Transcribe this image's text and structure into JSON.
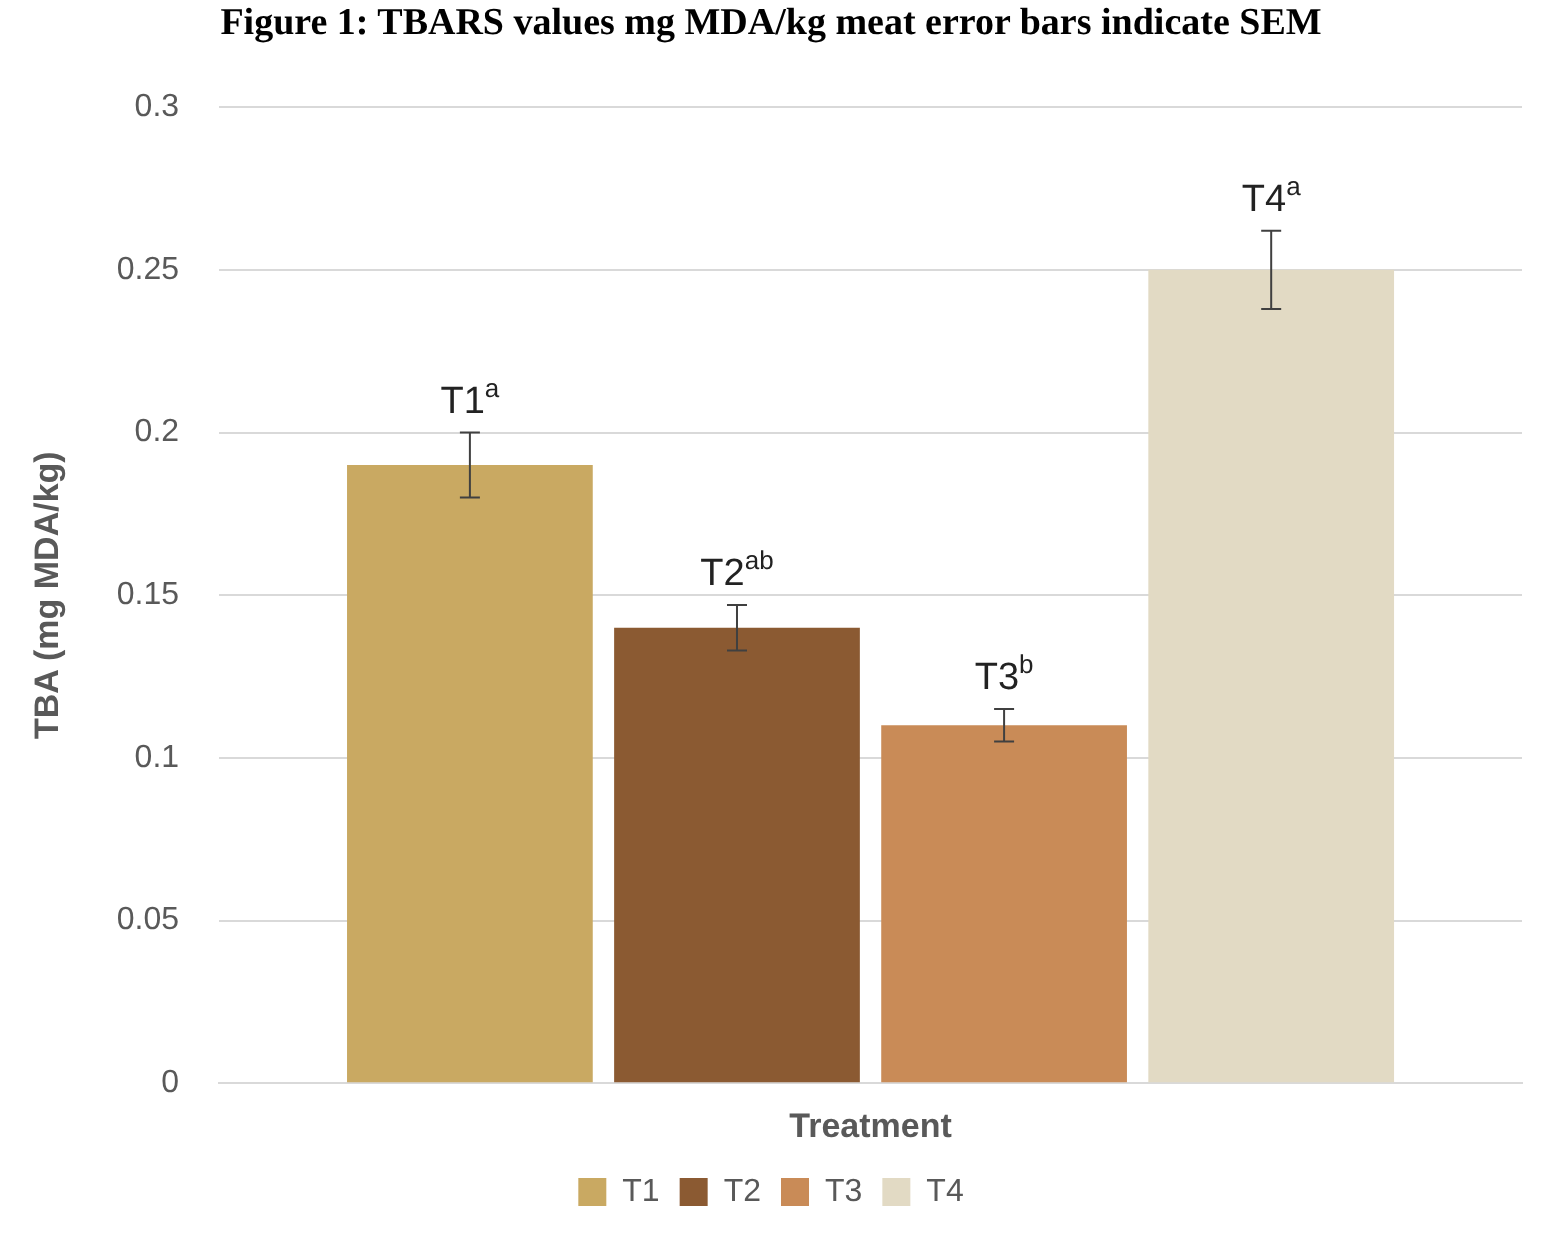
{
  "chart_data": {
    "type": "bar",
    "title": "Figure 1: TBARS values mg MDA/kg meat error bars indicate SEM",
    "xlabel": "Treatment",
    "ylabel": "TBA (mg MDA/kg)",
    "categories": [
      null
    ],
    "series": [
      {
        "name": "T1",
        "color": "#c9a962",
        "values": [
          0.19
        ],
        "errors": [
          0.01
        ]
      },
      {
        "name": "T2",
        "color": "#8b5a32",
        "values": [
          0.14
        ],
        "errors": [
          0.007
        ]
      },
      {
        "name": "T3",
        "color": "#c98b57",
        "values": [
          0.11
        ],
        "errors": [
          0.005
        ]
      },
      {
        "name": "T4",
        "color": "#e2dac4",
        "values": [
          0.25
        ],
        "errors": [
          0.012
        ]
      }
    ],
    "annotations": [
      {
        "text": "T1$^{a}$",
        "y": 0.2
      },
      {
        "text": "T2$^{ab}$",
        "y": 0.147
      },
      {
        "text": "T3$^{b}$",
        "y": 0.115
      },
      {
        "text": "T4$^{a}$",
        "y": 0.262
      }
    ],
    "ylim": [
      0,
      0.3
    ],
    "yticks": [
      0,
      0.05,
      0.1,
      0.15,
      0.2,
      0.25,
      0.3
    ],
    "grid": "y",
    "legend": "bottom"
  }
}
